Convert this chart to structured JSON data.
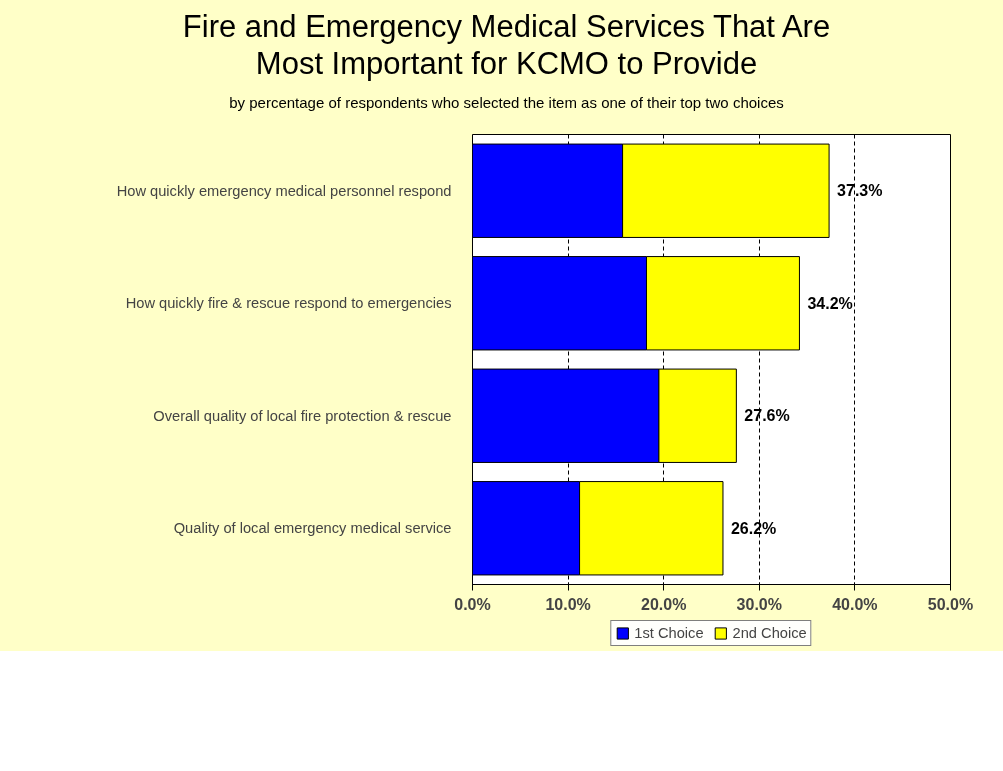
{
  "chart_data": {
    "type": "bar",
    "orientation": "horizontal",
    "stacked": true,
    "title": "Fire and Emergency Medical Services That Are\nMost Important for KCMO to Provide",
    "subtitle": "by percentage of respondents who selected the item as one of their top two choices",
    "categories": [
      "How quickly emergency medical personnel respond",
      "How quickly fire & rescue respond to emergencies",
      "Overall quality of local fire protection & rescue",
      "Quality of local emergency medical service"
    ],
    "series": [
      {
        "name": "1st Choice",
        "color": "#0000ff",
        "values": [
          15.7,
          18.2,
          19.5,
          11.2
        ]
      },
      {
        "name": "2nd Choice",
        "color": "#ffff00",
        "values": [
          21.6,
          16.0,
          8.1,
          15.0
        ]
      }
    ],
    "totals": [
      "37.3%",
      "34.2%",
      "27.6%",
      "26.2%"
    ],
    "xlim": [
      0,
      50
    ],
    "xticks": [
      {
        "value": 0,
        "label": "0.0%"
      },
      {
        "value": 10,
        "label": "10.0%"
      },
      {
        "value": 20,
        "label": "20.0%"
      },
      {
        "value": 30,
        "label": "30.0%"
      },
      {
        "value": 40,
        "label": "40.0%"
      },
      {
        "value": 50,
        "label": "50.0%"
      }
    ],
    "grid": "x",
    "legend": "bottom"
  }
}
